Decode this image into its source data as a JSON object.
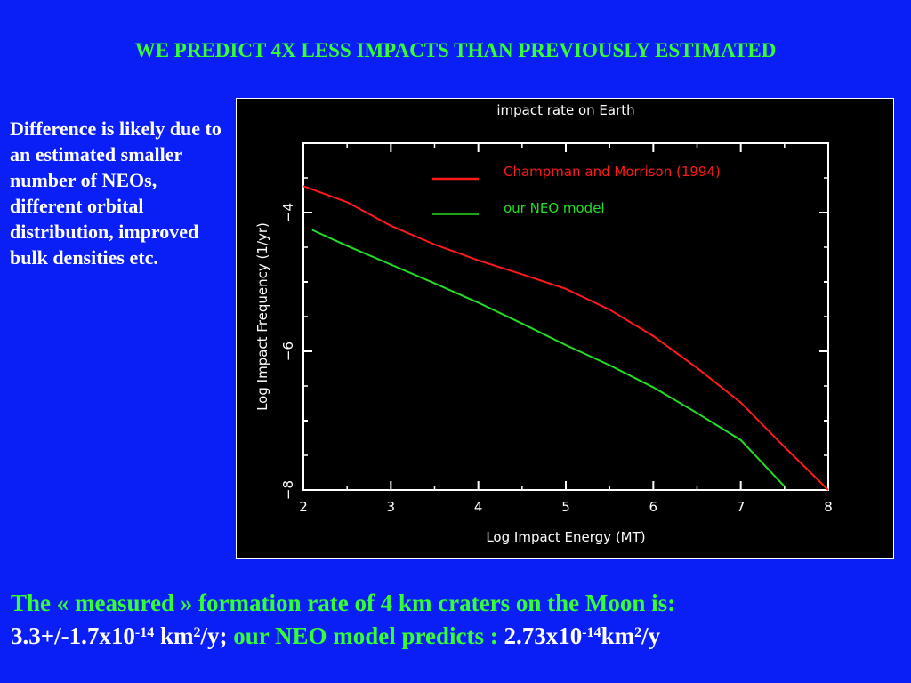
{
  "slide": {
    "title": "WE PREDICT 4X LESS IMPACTS THAN PREVIOUSLY ESTIMATED",
    "side_note": "Difference is likely due to an estimated smaller number of NEOs, different orbital distribution, improved bulk densities etc.",
    "bottom_line1": "The « measured » formation rate of 4 km craters on the Moon is:",
    "measured_value": "3.3+/-1.7x10",
    "measured_exp": "-14",
    "measured_unit": " km",
    "measured_unit_exp": "2",
    "measured_tail": "/y;",
    "model_label": " our NEO model predicts : ",
    "model_value": "2.73x10",
    "model_exp": "-14",
    "model_unit": "km",
    "model_unit_exp": "2",
    "model_tail": "/y"
  },
  "colors": {
    "background": "#0a1ef6",
    "title": "#33ff33",
    "chapman": "#ff1a1a",
    "neo": "#22dd22"
  },
  "chart_data": {
    "type": "line",
    "title": "impact rate on Earth",
    "xlabel": "Log Impact Energy (MT)",
    "ylabel": "Log Impact Frequency (1/yr)",
    "xlim": [
      2,
      8
    ],
    "ylim": [
      -8,
      -3
    ],
    "xticks": [
      2,
      3,
      4,
      5,
      6,
      7,
      8
    ],
    "yticks": [
      -4,
      -6,
      -8
    ],
    "legend_position": "top-right",
    "series": [
      {
        "name": "Champman and Morrison (1994)",
        "color": "#ff1a1a",
        "x": [
          2,
          2.5,
          3,
          3.5,
          4,
          4.5,
          5,
          5.5,
          6,
          6.5,
          7,
          7.5,
          8
        ],
        "y": [
          -3.62,
          -3.85,
          -4.19,
          -4.46,
          -4.69,
          -4.89,
          -5.1,
          -5.4,
          -5.78,
          -6.24,
          -6.74,
          -7.38,
          -8.0
        ]
      },
      {
        "name": "our NEO model",
        "color": "#22dd22",
        "x": [
          2.1,
          2.5,
          3,
          3.5,
          4,
          4.5,
          5,
          5.5,
          6,
          6.5,
          7,
          7.5
        ],
        "y": [
          -4.25,
          -4.48,
          -4.75,
          -5.02,
          -5.3,
          -5.6,
          -5.91,
          -6.2,
          -6.52,
          -6.89,
          -7.28,
          -7.95
        ]
      }
    ]
  }
}
